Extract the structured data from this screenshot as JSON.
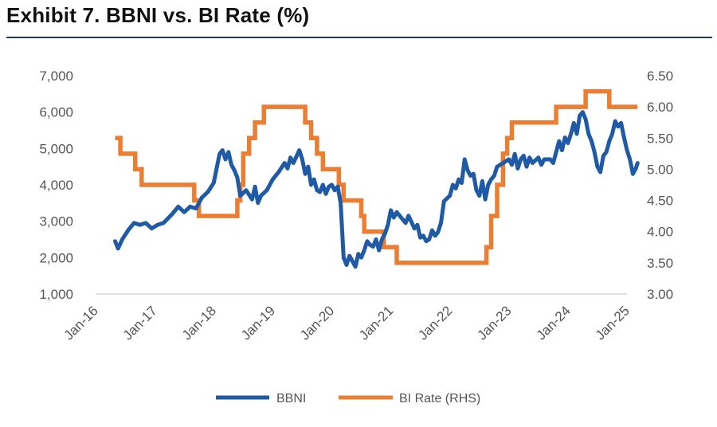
{
  "title": "Exhibit 7. BBNI vs. BI Rate (%)",
  "colors": {
    "bbni": "#1f5aa6",
    "bi_rate": "#ed7d31",
    "title_rule": "#1f3864"
  },
  "chart_data": {
    "type": "line",
    "title": "Exhibit 7. BBNI vs. BI Rate (%)",
    "x_ticks": [
      "Jan-16",
      "Jan-17",
      "Jan-18",
      "Jan-19",
      "Jan-20",
      "Jan-21",
      "Jan-22",
      "Jan-23",
      "Jan-24",
      "Jan-25"
    ],
    "x_range": [
      2016.0,
      2025.0
    ],
    "y_left": {
      "min": 1000,
      "max": 7000,
      "ticks": [
        "1,000",
        "2,000",
        "3,000",
        "4,000",
        "5,000",
        "6,000",
        "7,000"
      ]
    },
    "y_right": {
      "min": 3.0,
      "max": 6.5,
      "ticks": [
        "3.00",
        "3.50",
        "4.00",
        "4.50",
        "5.00",
        "5.50",
        "6.00",
        "6.50"
      ]
    },
    "legend_position": "bottom",
    "series": [
      {
        "name": "BBNI",
        "axis": "left",
        "points": [
          [
            2016.33,
            2450
          ],
          [
            2016.38,
            2250
          ],
          [
            2016.45,
            2500
          ],
          [
            2016.55,
            2750
          ],
          [
            2016.65,
            2950
          ],
          [
            2016.75,
            2900
          ],
          [
            2016.85,
            2950
          ],
          [
            2016.95,
            2800
          ],
          [
            2017.05,
            2900
          ],
          [
            2017.15,
            2950
          ],
          [
            2017.3,
            3200
          ],
          [
            2017.4,
            3400
          ],
          [
            2017.5,
            3250
          ],
          [
            2017.6,
            3400
          ],
          [
            2017.7,
            3350
          ],
          [
            2017.8,
            3650
          ],
          [
            2017.9,
            3800
          ],
          [
            2018.0,
            4050
          ],
          [
            2018.05,
            4450
          ],
          [
            2018.1,
            4850
          ],
          [
            2018.15,
            4950
          ],
          [
            2018.2,
            4700
          ],
          [
            2018.25,
            4900
          ],
          [
            2018.3,
            4550
          ],
          [
            2018.35,
            4400
          ],
          [
            2018.4,
            4200
          ],
          [
            2018.45,
            3700
          ],
          [
            2018.55,
            3850
          ],
          [
            2018.65,
            3600
          ],
          [
            2018.7,
            3950
          ],
          [
            2018.75,
            3500
          ],
          [
            2018.8,
            3700
          ],
          [
            2018.9,
            3850
          ],
          [
            2019.0,
            4150
          ],
          [
            2019.1,
            4350
          ],
          [
            2019.2,
            4600
          ],
          [
            2019.25,
            4450
          ],
          [
            2019.3,
            4750
          ],
          [
            2019.35,
            4600
          ],
          [
            2019.45,
            4950
          ],
          [
            2019.5,
            4700
          ],
          [
            2019.55,
            4300
          ],
          [
            2019.6,
            4500
          ],
          [
            2019.65,
            4000
          ],
          [
            2019.7,
            4150
          ],
          [
            2019.75,
            3850
          ],
          [
            2019.8,
            3800
          ],
          [
            2019.85,
            4000
          ],
          [
            2019.9,
            3750
          ],
          [
            2019.95,
            3950
          ],
          [
            2020.0,
            4000
          ],
          [
            2020.05,
            3850
          ],
          [
            2020.1,
            3950
          ],
          [
            2020.15,
            3500
          ],
          [
            2020.2,
            2000
          ],
          [
            2020.25,
            1800
          ],
          [
            2020.3,
            2050
          ],
          [
            2020.35,
            1900
          ],
          [
            2020.4,
            1750
          ],
          [
            2020.45,
            2100
          ],
          [
            2020.5,
            2000
          ],
          [
            2020.55,
            2200
          ],
          [
            2020.6,
            2450
          ],
          [
            2020.65,
            2350
          ],
          [
            2020.7,
            2300
          ],
          [
            2020.75,
            2500
          ],
          [
            2020.8,
            2200
          ],
          [
            2020.85,
            2500
          ],
          [
            2020.9,
            2650
          ],
          [
            2020.95,
            2900
          ],
          [
            2021.0,
            3300
          ],
          [
            2021.05,
            3100
          ],
          [
            2021.1,
            3250
          ],
          [
            2021.2,
            3050
          ],
          [
            2021.25,
            2950
          ],
          [
            2021.3,
            3150
          ],
          [
            2021.4,
            2800
          ],
          [
            2021.45,
            2900
          ],
          [
            2021.5,
            2550
          ],
          [
            2021.55,
            2600
          ],
          [
            2021.6,
            2450
          ],
          [
            2021.65,
            2500
          ],
          [
            2021.7,
            2750
          ],
          [
            2021.75,
            2600
          ],
          [
            2021.8,
            2700
          ],
          [
            2021.85,
            2950
          ],
          [
            2021.9,
            3550
          ],
          [
            2022.0,
            3700
          ],
          [
            2022.05,
            4000
          ],
          [
            2022.1,
            3900
          ],
          [
            2022.15,
            4150
          ],
          [
            2022.2,
            4050
          ],
          [
            2022.25,
            4700
          ],
          [
            2022.3,
            4400
          ],
          [
            2022.35,
            4250
          ],
          [
            2022.4,
            4300
          ],
          [
            2022.45,
            3850
          ],
          [
            2022.5,
            3700
          ],
          [
            2022.55,
            4100
          ],
          [
            2022.6,
            3600
          ],
          [
            2022.65,
            4000
          ],
          [
            2022.7,
            4150
          ],
          [
            2022.75,
            4250
          ],
          [
            2022.8,
            4500
          ],
          [
            2022.9,
            4600
          ],
          [
            2023.0,
            4700
          ],
          [
            2023.05,
            4550
          ],
          [
            2023.1,
            4850
          ],
          [
            2023.15,
            4450
          ],
          [
            2023.2,
            4700
          ],
          [
            2023.25,
            4800
          ],
          [
            2023.3,
            4500
          ],
          [
            2023.35,
            4750
          ],
          [
            2023.4,
            4600
          ],
          [
            2023.5,
            4750
          ],
          [
            2023.55,
            4550
          ],
          [
            2023.6,
            4700
          ],
          [
            2023.7,
            4700
          ],
          [
            2023.75,
            4600
          ],
          [
            2023.8,
            4900
          ],
          [
            2023.85,
            5200
          ],
          [
            2023.9,
            4950
          ],
          [
            2023.95,
            5300
          ],
          [
            2024.0,
            5150
          ],
          [
            2024.05,
            5400
          ],
          [
            2024.1,
            5700
          ],
          [
            2024.15,
            5400
          ],
          [
            2024.2,
            5900
          ],
          [
            2024.25,
            6000
          ],
          [
            2024.3,
            5800
          ],
          [
            2024.35,
            5400
          ],
          [
            2024.4,
            5200
          ],
          [
            2024.45,
            4900
          ],
          [
            2024.5,
            4500
          ],
          [
            2024.55,
            4350
          ],
          [
            2024.6,
            4800
          ],
          [
            2024.65,
            4900
          ],
          [
            2024.7,
            5200
          ],
          [
            2024.75,
            5400
          ],
          [
            2024.8,
            5750
          ],
          [
            2024.85,
            5600
          ],
          [
            2024.9,
            5700
          ],
          [
            2024.95,
            5300
          ],
          [
            2025.0,
            4950
          ],
          [
            2025.05,
            4700
          ],
          [
            2025.1,
            4300
          ],
          [
            2025.15,
            4450
          ],
          [
            2025.18,
            4600
          ]
        ]
      },
      {
        "name": "BI Rate (RHS)",
        "axis": "right",
        "points": [
          [
            2016.33,
            5.5
          ],
          [
            2016.42,
            5.5
          ],
          [
            2016.42,
            5.25
          ],
          [
            2016.67,
            5.25
          ],
          [
            2016.67,
            5.0
          ],
          [
            2016.78,
            5.0
          ],
          [
            2016.78,
            4.75
          ],
          [
            2017.67,
            4.75
          ],
          [
            2017.67,
            4.5
          ],
          [
            2017.75,
            4.5
          ],
          [
            2017.75,
            4.25
          ],
          [
            2018.4,
            4.25
          ],
          [
            2018.4,
            4.5
          ],
          [
            2018.45,
            4.5
          ],
          [
            2018.45,
            4.75
          ],
          [
            2018.5,
            4.75
          ],
          [
            2018.5,
            5.25
          ],
          [
            2018.6,
            5.25
          ],
          [
            2018.6,
            5.5
          ],
          [
            2018.7,
            5.5
          ],
          [
            2018.7,
            5.75
          ],
          [
            2018.85,
            5.75
          ],
          [
            2018.85,
            6.0
          ],
          [
            2019.55,
            6.0
          ],
          [
            2019.55,
            5.75
          ],
          [
            2019.65,
            5.75
          ],
          [
            2019.65,
            5.5
          ],
          [
            2019.75,
            5.5
          ],
          [
            2019.75,
            5.25
          ],
          [
            2019.85,
            5.25
          ],
          [
            2019.85,
            5.0
          ],
          [
            2020.12,
            5.0
          ],
          [
            2020.12,
            4.75
          ],
          [
            2020.2,
            4.75
          ],
          [
            2020.2,
            4.5
          ],
          [
            2020.5,
            4.5
          ],
          [
            2020.5,
            4.25
          ],
          [
            2020.55,
            4.25
          ],
          [
            2020.55,
            4.0
          ],
          [
            2020.88,
            4.0
          ],
          [
            2020.88,
            3.75
          ],
          [
            2021.1,
            3.75
          ],
          [
            2021.1,
            3.5
          ],
          [
            2022.62,
            3.5
          ],
          [
            2022.62,
            3.75
          ],
          [
            2022.7,
            3.75
          ],
          [
            2022.7,
            4.25
          ],
          [
            2022.8,
            4.25
          ],
          [
            2022.8,
            4.75
          ],
          [
            2022.9,
            4.75
          ],
          [
            2022.9,
            5.25
          ],
          [
            2022.97,
            5.25
          ],
          [
            2022.97,
            5.5
          ],
          [
            2023.05,
            5.5
          ],
          [
            2023.05,
            5.75
          ],
          [
            2023.8,
            5.75
          ],
          [
            2023.8,
            6.0
          ],
          [
            2024.3,
            6.0
          ],
          [
            2024.3,
            6.25
          ],
          [
            2024.7,
            6.25
          ],
          [
            2024.7,
            6.0
          ],
          [
            2025.18,
            6.0
          ]
        ]
      }
    ]
  }
}
